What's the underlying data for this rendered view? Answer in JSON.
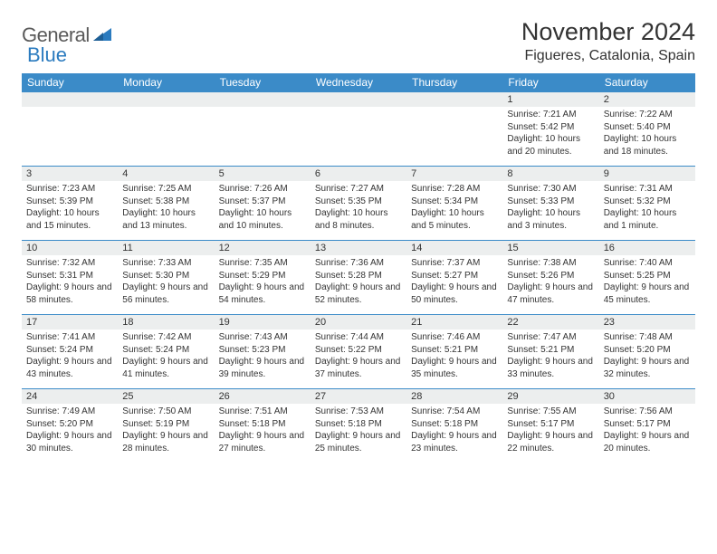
{
  "brand": {
    "text1": "General",
    "text2": "Blue",
    "icon_color": "#2b7bbf"
  },
  "title": "November 2024",
  "location": "Figueres, Catalonia, Spain",
  "colors": {
    "header_bg": "#3b8bc8",
    "header_text": "#ffffff",
    "daynum_bg": "#eceeee",
    "body_text": "#333333",
    "border": "#3b8bc8",
    "logo_gray": "#5a5a5a",
    "logo_blue": "#2b7bbf",
    "page_bg": "#ffffff"
  },
  "day_headers": [
    "Sunday",
    "Monday",
    "Tuesday",
    "Wednesday",
    "Thursday",
    "Friday",
    "Saturday"
  ],
  "weeks": [
    [
      {
        "n": "",
        "lines": []
      },
      {
        "n": "",
        "lines": []
      },
      {
        "n": "",
        "lines": []
      },
      {
        "n": "",
        "lines": []
      },
      {
        "n": "",
        "lines": []
      },
      {
        "n": "1",
        "lines": [
          "Sunrise: 7:21 AM",
          "Sunset: 5:42 PM",
          "Daylight: 10 hours and 20 minutes."
        ]
      },
      {
        "n": "2",
        "lines": [
          "Sunrise: 7:22 AM",
          "Sunset: 5:40 PM",
          "Daylight: 10 hours and 18 minutes."
        ]
      }
    ],
    [
      {
        "n": "3",
        "lines": [
          "Sunrise: 7:23 AM",
          "Sunset: 5:39 PM",
          "Daylight: 10 hours and 15 minutes."
        ]
      },
      {
        "n": "4",
        "lines": [
          "Sunrise: 7:25 AM",
          "Sunset: 5:38 PM",
          "Daylight: 10 hours and 13 minutes."
        ]
      },
      {
        "n": "5",
        "lines": [
          "Sunrise: 7:26 AM",
          "Sunset: 5:37 PM",
          "Daylight: 10 hours and 10 minutes."
        ]
      },
      {
        "n": "6",
        "lines": [
          "Sunrise: 7:27 AM",
          "Sunset: 5:35 PM",
          "Daylight: 10 hours and 8 minutes."
        ]
      },
      {
        "n": "7",
        "lines": [
          "Sunrise: 7:28 AM",
          "Sunset: 5:34 PM",
          "Daylight: 10 hours and 5 minutes."
        ]
      },
      {
        "n": "8",
        "lines": [
          "Sunrise: 7:30 AM",
          "Sunset: 5:33 PM",
          "Daylight: 10 hours and 3 minutes."
        ]
      },
      {
        "n": "9",
        "lines": [
          "Sunrise: 7:31 AM",
          "Sunset: 5:32 PM",
          "Daylight: 10 hours and 1 minute."
        ]
      }
    ],
    [
      {
        "n": "10",
        "lines": [
          "Sunrise: 7:32 AM",
          "Sunset: 5:31 PM",
          "Daylight: 9 hours and 58 minutes."
        ]
      },
      {
        "n": "11",
        "lines": [
          "Sunrise: 7:33 AM",
          "Sunset: 5:30 PM",
          "Daylight: 9 hours and 56 minutes."
        ]
      },
      {
        "n": "12",
        "lines": [
          "Sunrise: 7:35 AM",
          "Sunset: 5:29 PM",
          "Daylight: 9 hours and 54 minutes."
        ]
      },
      {
        "n": "13",
        "lines": [
          "Sunrise: 7:36 AM",
          "Sunset: 5:28 PM",
          "Daylight: 9 hours and 52 minutes."
        ]
      },
      {
        "n": "14",
        "lines": [
          "Sunrise: 7:37 AM",
          "Sunset: 5:27 PM",
          "Daylight: 9 hours and 50 minutes."
        ]
      },
      {
        "n": "15",
        "lines": [
          "Sunrise: 7:38 AM",
          "Sunset: 5:26 PM",
          "Daylight: 9 hours and 47 minutes."
        ]
      },
      {
        "n": "16",
        "lines": [
          "Sunrise: 7:40 AM",
          "Sunset: 5:25 PM",
          "Daylight: 9 hours and 45 minutes."
        ]
      }
    ],
    [
      {
        "n": "17",
        "lines": [
          "Sunrise: 7:41 AM",
          "Sunset: 5:24 PM",
          "Daylight: 9 hours and 43 minutes."
        ]
      },
      {
        "n": "18",
        "lines": [
          "Sunrise: 7:42 AM",
          "Sunset: 5:24 PM",
          "Daylight: 9 hours and 41 minutes."
        ]
      },
      {
        "n": "19",
        "lines": [
          "Sunrise: 7:43 AM",
          "Sunset: 5:23 PM",
          "Daylight: 9 hours and 39 minutes."
        ]
      },
      {
        "n": "20",
        "lines": [
          "Sunrise: 7:44 AM",
          "Sunset: 5:22 PM",
          "Daylight: 9 hours and 37 minutes."
        ]
      },
      {
        "n": "21",
        "lines": [
          "Sunrise: 7:46 AM",
          "Sunset: 5:21 PM",
          "Daylight: 9 hours and 35 minutes."
        ]
      },
      {
        "n": "22",
        "lines": [
          "Sunrise: 7:47 AM",
          "Sunset: 5:21 PM",
          "Daylight: 9 hours and 33 minutes."
        ]
      },
      {
        "n": "23",
        "lines": [
          "Sunrise: 7:48 AM",
          "Sunset: 5:20 PM",
          "Daylight: 9 hours and 32 minutes."
        ]
      }
    ],
    [
      {
        "n": "24",
        "lines": [
          "Sunrise: 7:49 AM",
          "Sunset: 5:20 PM",
          "Daylight: 9 hours and 30 minutes."
        ]
      },
      {
        "n": "25",
        "lines": [
          "Sunrise: 7:50 AM",
          "Sunset: 5:19 PM",
          "Daylight: 9 hours and 28 minutes."
        ]
      },
      {
        "n": "26",
        "lines": [
          "Sunrise: 7:51 AM",
          "Sunset: 5:18 PM",
          "Daylight: 9 hours and 27 minutes."
        ]
      },
      {
        "n": "27",
        "lines": [
          "Sunrise: 7:53 AM",
          "Sunset: 5:18 PM",
          "Daylight: 9 hours and 25 minutes."
        ]
      },
      {
        "n": "28",
        "lines": [
          "Sunrise: 7:54 AM",
          "Sunset: 5:18 PM",
          "Daylight: 9 hours and 23 minutes."
        ]
      },
      {
        "n": "29",
        "lines": [
          "Sunrise: 7:55 AM",
          "Sunset: 5:17 PM",
          "Daylight: 9 hours and 22 minutes."
        ]
      },
      {
        "n": "30",
        "lines": [
          "Sunrise: 7:56 AM",
          "Sunset: 5:17 PM",
          "Daylight: 9 hours and 20 minutes."
        ]
      }
    ]
  ]
}
